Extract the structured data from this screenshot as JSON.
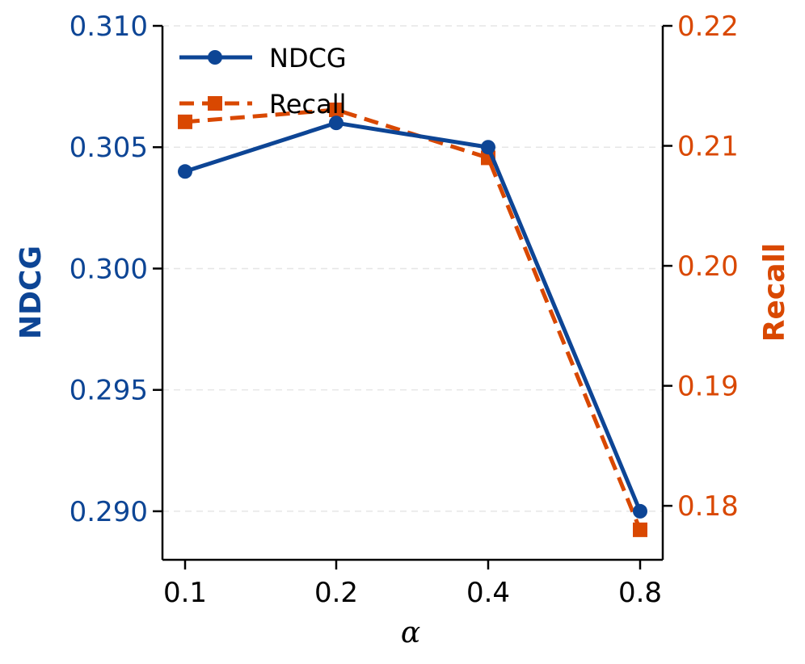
{
  "chart_data": {
    "type": "line",
    "title": "",
    "xlabel": "α",
    "categories": [
      "0.1",
      "0.2",
      "0.4",
      "0.8"
    ],
    "left_axis": {
      "label": "NDCG",
      "color": "#0d4595",
      "ylim": [
        0.288,
        0.31
      ],
      "ticks": [
        0.29,
        0.295,
        0.3,
        0.305,
        0.31
      ],
      "tick_labels": [
        "0.290",
        "0.295",
        "0.300",
        "0.305",
        "0.310"
      ]
    },
    "right_axis": {
      "label": "Recall",
      "color": "#d94801",
      "ylim": [
        0.1755,
        0.22
      ],
      "ticks": [
        0.18,
        0.19,
        0.2,
        0.21,
        0.22
      ],
      "tick_labels": [
        "0.18",
        "0.19",
        "0.20",
        "0.21",
        "0.22"
      ]
    },
    "series": [
      {
        "name": "NDCG",
        "axis": "left",
        "style": "solid",
        "marker": "circle",
        "color": "#0d4595",
        "values": [
          0.304,
          0.306,
          0.305,
          0.29
        ]
      },
      {
        "name": "Recall",
        "axis": "right",
        "style": "dashed",
        "marker": "square",
        "color": "#d94801",
        "values": [
          0.212,
          0.213,
          0.209,
          0.178
        ]
      }
    ],
    "grid": "horizontal-dashed",
    "legend": {
      "placement": "top-left",
      "entries": [
        "NDCG",
        "Recall"
      ]
    }
  }
}
